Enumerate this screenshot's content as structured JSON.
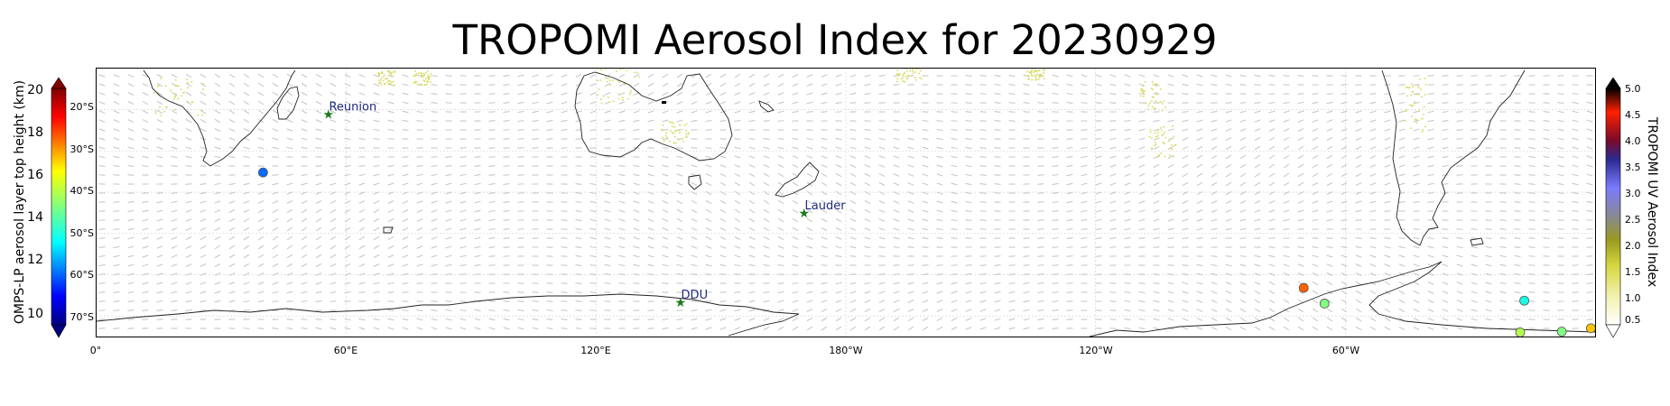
{
  "title": "TROPOMI Aerosol Index for 20230929",
  "left_colorbar": {
    "label": "OMPS-LP aerosol layer top height (km)",
    "ticks": [
      "20",
      "18",
      "16",
      "14",
      "12",
      "10"
    ],
    "min": 10,
    "max": 20
  },
  "right_colorbar": {
    "label": "TROPOMI UV Aerosol Index",
    "ticks": [
      "5.0",
      "4.5",
      "4.0",
      "3.5",
      "3.0",
      "2.5",
      "2.0",
      "1.5",
      "1.0",
      "0.5"
    ],
    "min": 0.5,
    "max": 5.0
  },
  "lat_labels": [
    "20°S",
    "30°S",
    "40°S",
    "50°S",
    "60°S",
    "70°S"
  ],
  "lon_labels": [
    "0°",
    "60°E",
    "120°E",
    "180°W",
    "120°W",
    "60°W"
  ],
  "map_extent": {
    "lon_min": 0,
    "lon_max": 360,
    "lat_min": -75,
    "lat_max": -10
  },
  "sites": [
    {
      "name": "Reunion",
      "lon": 55.4,
      "lat": -21.1
    },
    {
      "name": "Lauder",
      "lon": 169.7,
      "lat": -45.0
    },
    {
      "name": "DDU",
      "lon": 140.0,
      "lat": -66.7
    }
  ],
  "omps_points": [
    {
      "lon": 40.0,
      "lat": -35.2,
      "height_km": 12.3
    },
    {
      "lon": 290.0,
      "lat": -63.2,
      "height_km": 17.8
    },
    {
      "lon": 295.0,
      "lat": -67.0,
      "height_km": 15.0
    },
    {
      "lon": 343.0,
      "lat": -66.3,
      "height_km": 14.0
    },
    {
      "lon": 352.0,
      "lat": -73.8,
      "height_km": 15.0
    },
    {
      "lon": 359.0,
      "lat": -73.0,
      "height_km": 16.8
    },
    {
      "lon": 342.0,
      "lat": -74.0,
      "height_km": 15.5
    }
  ],
  "colors": {
    "site_star": "#1a7a1a",
    "site_text": "#1f2a80",
    "coast": "#222222",
    "wind_arrows": "#c8c8c8",
    "aerosol_low": "#d8d860",
    "aerosol_high": "#000000"
  }
}
